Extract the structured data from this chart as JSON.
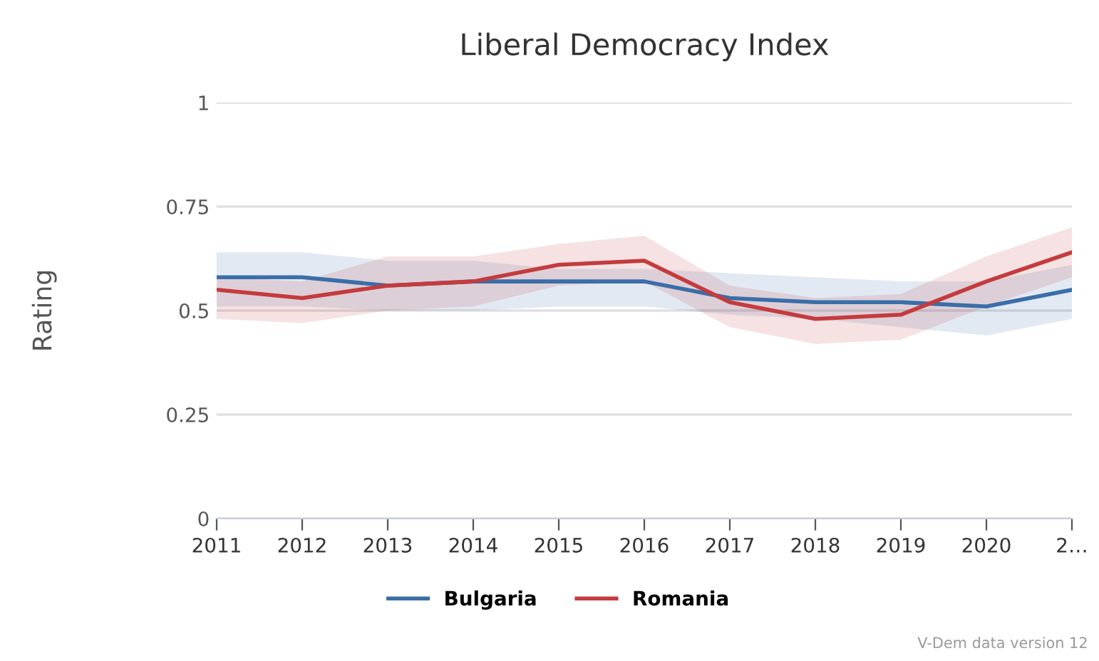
{
  "chart_data": {
    "type": "line",
    "title": "Liberal Democracy Index",
    "ylabel": "Rating",
    "categories": [
      "2011",
      "2012",
      "2013",
      "2014",
      "2015",
      "2016",
      "2017",
      "2018",
      "2019",
      "2020",
      "2…"
    ],
    "series": [
      {
        "name": "Bulgaria",
        "color": "#3a6ea8",
        "values": [
          0.58,
          0.58,
          0.56,
          0.57,
          0.57,
          0.57,
          0.53,
          0.52,
          0.52,
          0.51,
          0.55
        ],
        "upper": [
          0.64,
          0.64,
          0.62,
          0.62,
          0.6,
          0.6,
          0.59,
          0.58,
          0.57,
          0.57,
          0.61
        ],
        "lower": [
          0.51,
          0.51,
          0.5,
          0.5,
          0.51,
          0.51,
          0.49,
          0.48,
          0.46,
          0.44,
          0.48
        ]
      },
      {
        "name": "Romania",
        "color": "#c43b3d",
        "values": [
          0.55,
          0.53,
          0.56,
          0.57,
          0.61,
          0.62,
          0.52,
          0.48,
          0.49,
          0.57,
          0.64
        ],
        "upper": [
          0.58,
          0.57,
          0.63,
          0.63,
          0.66,
          0.68,
          0.56,
          0.53,
          0.54,
          0.63,
          0.7
        ],
        "lower": [
          0.48,
          0.47,
          0.5,
          0.51,
          0.56,
          0.57,
          0.46,
          0.42,
          0.43,
          0.51,
          0.58
        ]
      }
    ],
    "ylim": [
      0,
      1
    ],
    "yticks": [
      0,
      0.25,
      0.5,
      0.75,
      1
    ],
    "grid": "y",
    "legend": "bottom",
    "marker": "none",
    "line_style": "solid",
    "annotations": [
      "V-Dem data version 12"
    ]
  }
}
